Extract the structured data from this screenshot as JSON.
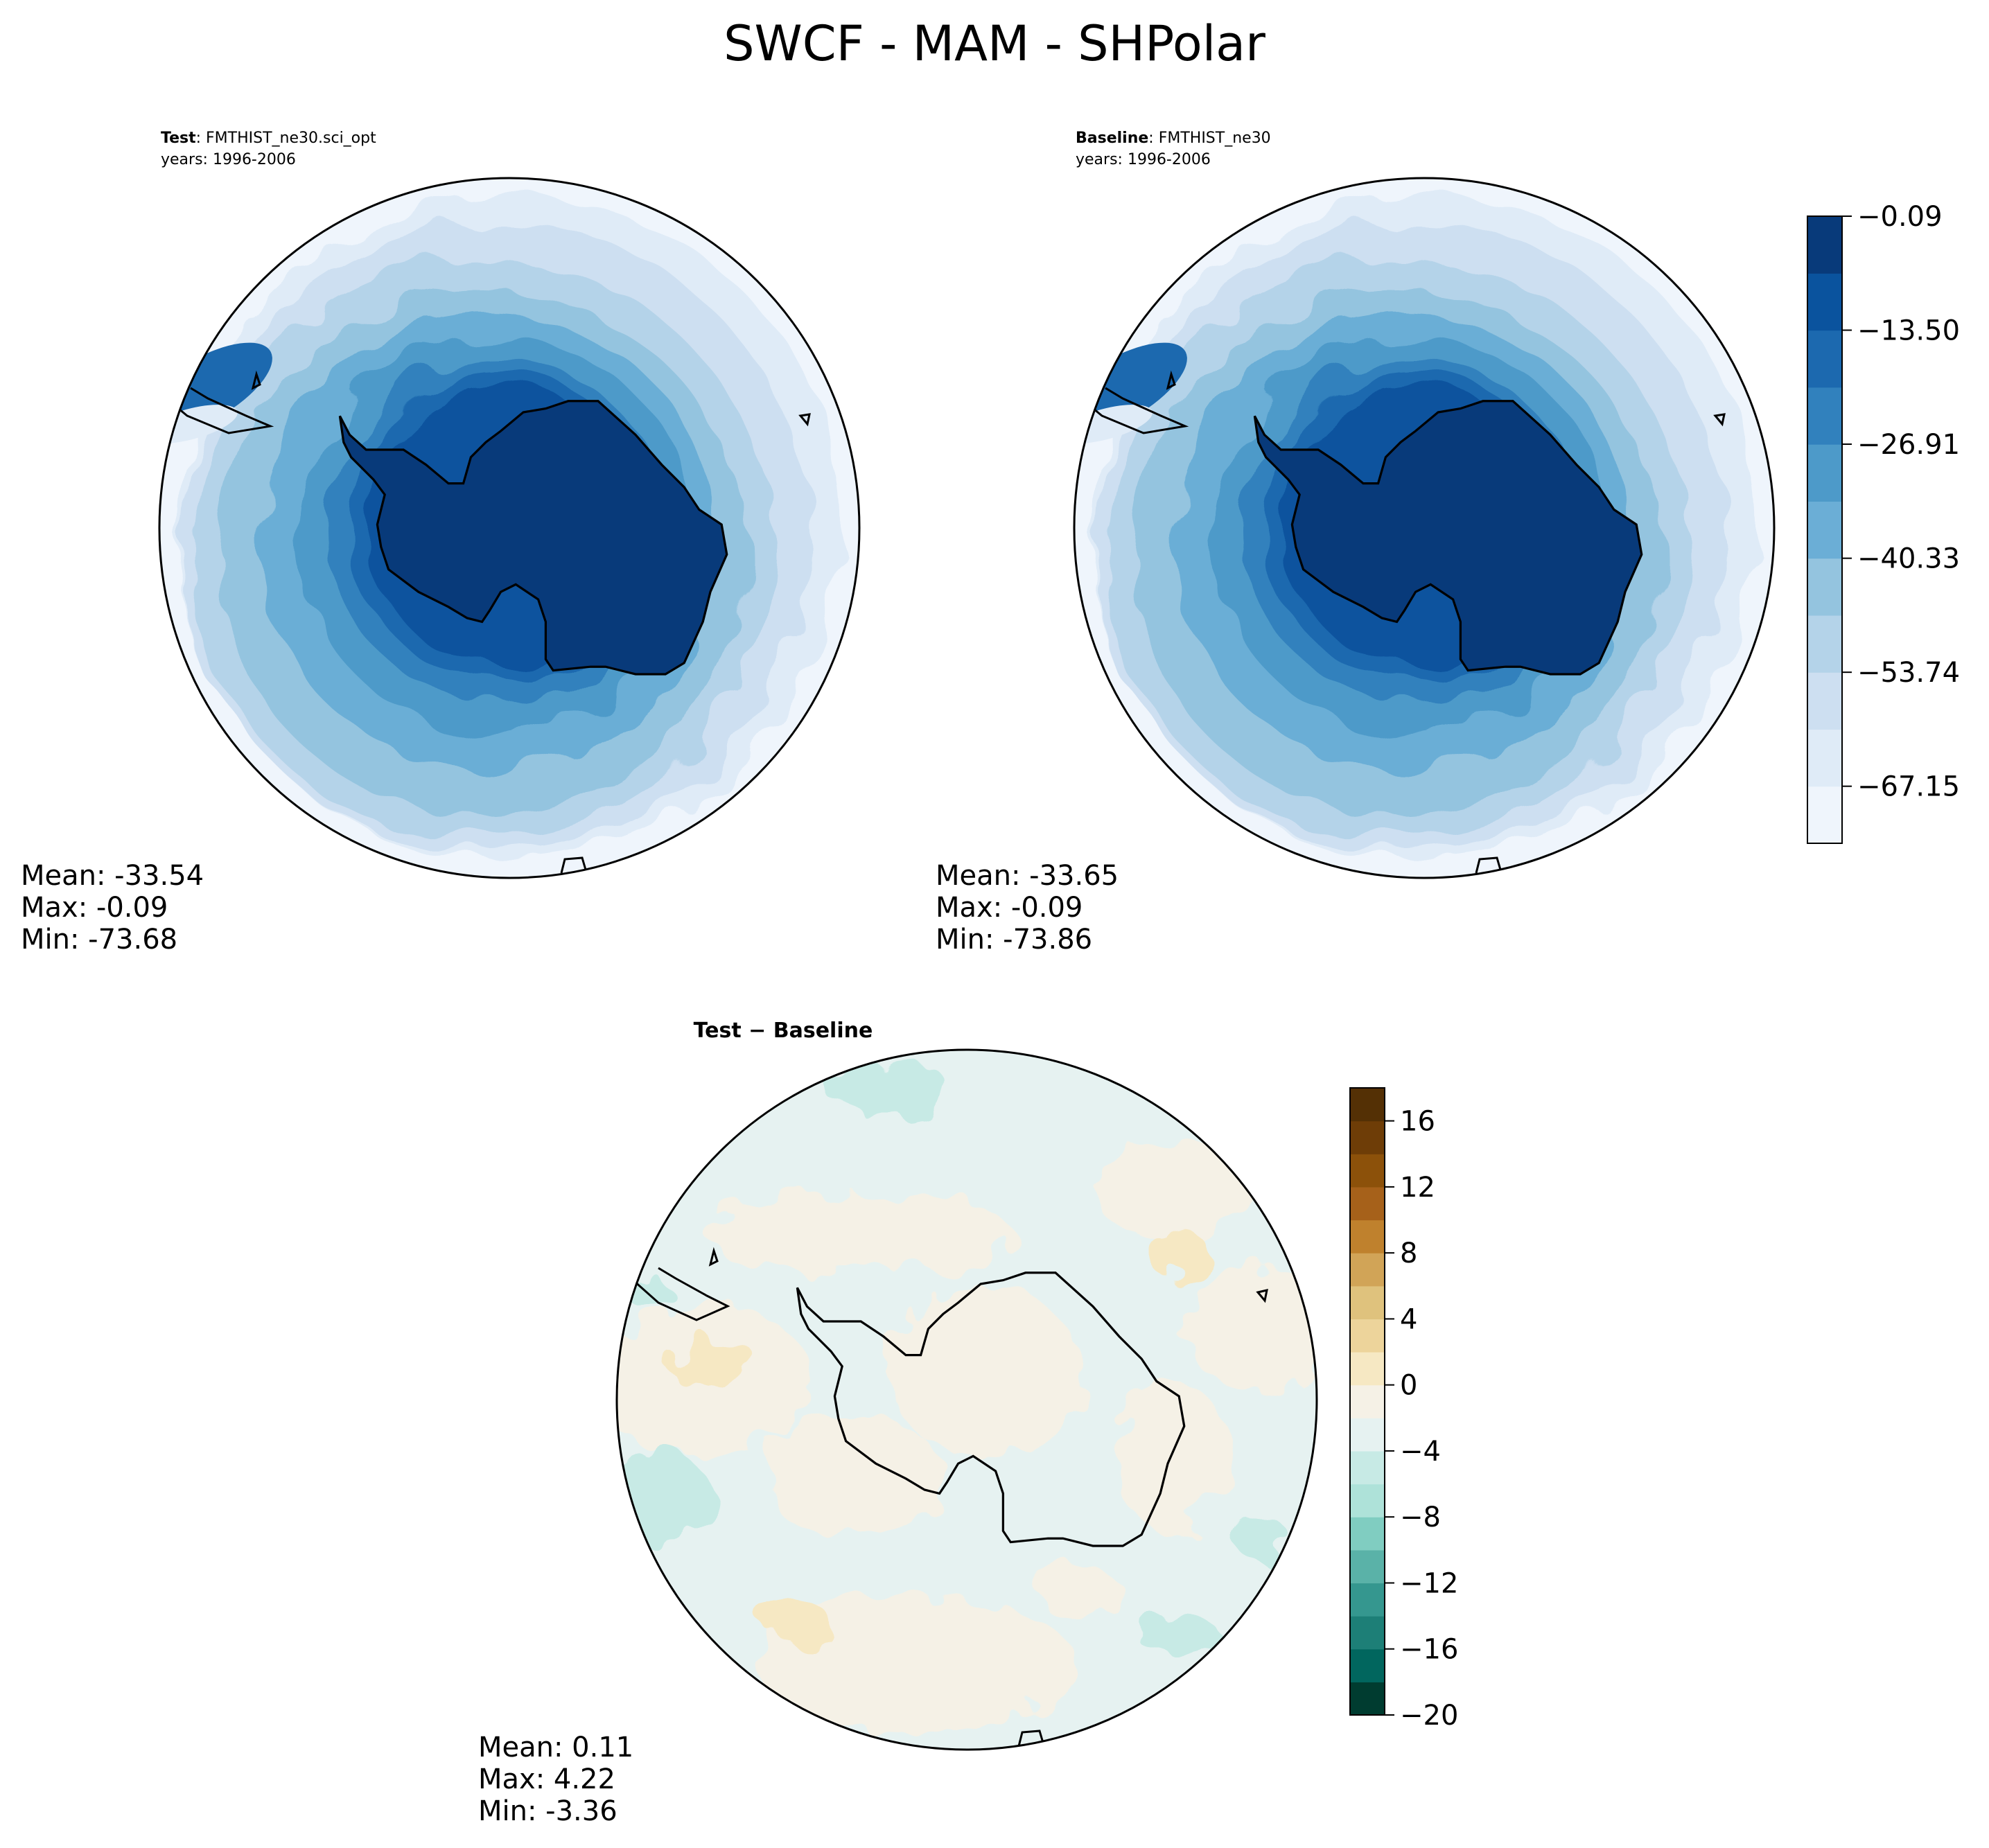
{
  "figure": {
    "title": "SWCF - MAM - SHPolar"
  },
  "panels": {
    "test": {
      "label_bold": "Test",
      "label_rest": ": FMTHIST_ne30.sci_opt",
      "years": "years: 1996-2006",
      "stats": {
        "mean": "Mean: -33.54",
        "max": "Max: -0.09",
        "min": "Min: -73.68"
      }
    },
    "baseline": {
      "label_bold": "Baseline",
      "label_rest": ": FMTHIST_ne30",
      "years": "years: 1996-2006",
      "stats": {
        "mean": "Mean: -33.65",
        "max": "Max: -0.09",
        "min": "Min: -73.86"
      }
    },
    "diff": {
      "title": "Test − Baseline",
      "stats": {
        "mean": "Mean:  0.11",
        "max": "Max:  4.22",
        "min": "Min: -3.36"
      }
    }
  },
  "chart_data": [
    {
      "type": "heatmap",
      "projection": "south-polar-stereographic",
      "panels": [
        "Test",
        "Baseline"
      ],
      "colorbar": {
        "colormap": "Blues",
        "range": [
          -73.86,
          -0.09
        ],
        "ticks": [
          -0.09,
          -13.5,
          -26.91,
          -40.33,
          -53.74,
          -67.15
        ],
        "tick_labels": [
          "−0.09",
          "−13.50",
          "−26.91",
          "−40.33",
          "−53.74",
          "−67.15"
        ],
        "colors": [
          "#eff5fc",
          "#dfebf7",
          "#cddff1",
          "#b4d3e9",
          "#94c4df",
          "#6baed6",
          "#4d9ac9",
          "#3181bd",
          "#1c69af",
          "#0a539e",
          "#083a7a"
        ]
      },
      "test": {
        "mean": -33.54,
        "max": -0.09,
        "min": -73.68
      },
      "baseline": {
        "mean": -33.65,
        "max": -0.09,
        "min": -73.86
      }
    },
    {
      "type": "heatmap",
      "projection": "south-polar-stereographic",
      "panels": [
        "Test − Baseline"
      ],
      "colorbar": {
        "colormap": "BrBG",
        "range": [
          -20,
          18
        ],
        "ticks": [
          16,
          12,
          8,
          4,
          0,
          -4,
          -8,
          -12,
          -16,
          -20
        ],
        "tick_labels": [
          "16",
          "12",
          "8",
          "4",
          "0",
          "−4",
          "−8",
          "−12",
          "−16",
          "−20"
        ],
        "colors": [
          "#003c30",
          "#01665e",
          "#1d7f77",
          "#35978f",
          "#5ab2a8",
          "#80cdc1",
          "#aee2d9",
          "#c7eae5",
          "#e6f2f1",
          "#f5f1e6",
          "#f6e8c3",
          "#edd49b",
          "#dfc27d",
          "#d1a457",
          "#bf812d",
          "#a6611a",
          "#8c510a",
          "#6e3d07",
          "#543005"
        ]
      },
      "diff": {
        "mean": 0.11,
        "max": 4.22,
        "min": -3.36
      }
    }
  ]
}
